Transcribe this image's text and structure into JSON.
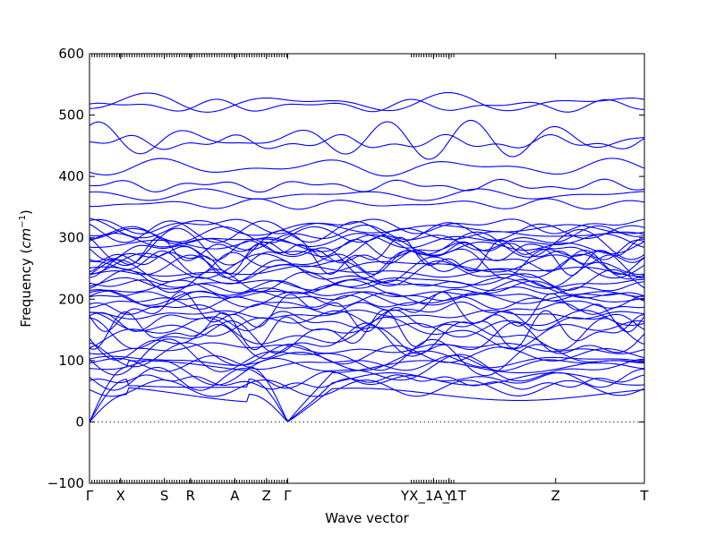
{
  "chart_data": {
    "type": "line",
    "title": "",
    "xlabel": "Wave vector",
    "ylabel_prefix": "Frequency (",
    "ylabel_unit": "cm",
    "ylabel_exp": "−1",
    "ylabel_suffix": ")",
    "ylim": [
      -100,
      600
    ],
    "yticks": [
      -100,
      0,
      100,
      200,
      300,
      400,
      500,
      600
    ],
    "xlim": [
      0,
      1
    ],
    "grid": false,
    "zero_line": true,
    "high_symmetry_points": [
      {
        "label": "Γ",
        "x": 0.0
      },
      {
        "label": "X",
        "x": 0.056
      },
      {
        "label": "S",
        "x": 0.135
      },
      {
        "label": "R",
        "x": 0.182
      },
      {
        "label": "A",
        "x": 0.262
      },
      {
        "label": "Z",
        "x": 0.319
      },
      {
        "label": "Γ",
        "x": 0.357
      },
      {
        "label": "YX_1A_1T",
        "x": 0.62
      },
      {
        "label": "Y",
        "x": 0.648
      },
      {
        "label": "Z",
        "x": 0.84
      },
      {
        "label": "T",
        "x": 1.0
      }
    ],
    "series_color": "#0000ff",
    "bands_start_freq": [
      0,
      0,
      0,
      55,
      65,
      70,
      85,
      95,
      100,
      105,
      110,
      120,
      130,
      140,
      145,
      150,
      160,
      165,
      175,
      180,
      185,
      195,
      200,
      205,
      210,
      215,
      220,
      225,
      230,
      240,
      245,
      250,
      255,
      260,
      265,
      270,
      275,
      280,
      285,
      290,
      295,
      300,
      305,
      310,
      315,
      320,
      355,
      370,
      385,
      415,
      455,
      460,
      515,
      520
    ]
  }
}
